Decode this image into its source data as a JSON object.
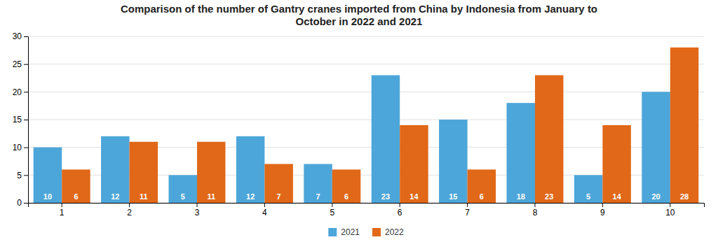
{
  "chart_data": {
    "type": "bar",
    "title": "Comparison of the number of Gantry cranes imported from China by Indonesia from January to\nOctober in 2022 and 2021",
    "categories": [
      1,
      2,
      3,
      4,
      5,
      6,
      7,
      8,
      9,
      10
    ],
    "series": [
      {
        "name": "2021",
        "color": "#4da6d9",
        "values": [
          10,
          12,
          5,
          12,
          7,
          23,
          15,
          18,
          5,
          20
        ]
      },
      {
        "name": "2022",
        "color": "#e06818",
        "values": [
          6,
          11,
          11,
          7,
          6,
          14,
          6,
          23,
          14,
          28
        ]
      }
    ],
    "ylim": [
      0,
      30
    ],
    "yticks": [
      0,
      5,
      10,
      15,
      20,
      25,
      30
    ],
    "grid": true,
    "legend": "bottom",
    "data_labels": true
  }
}
